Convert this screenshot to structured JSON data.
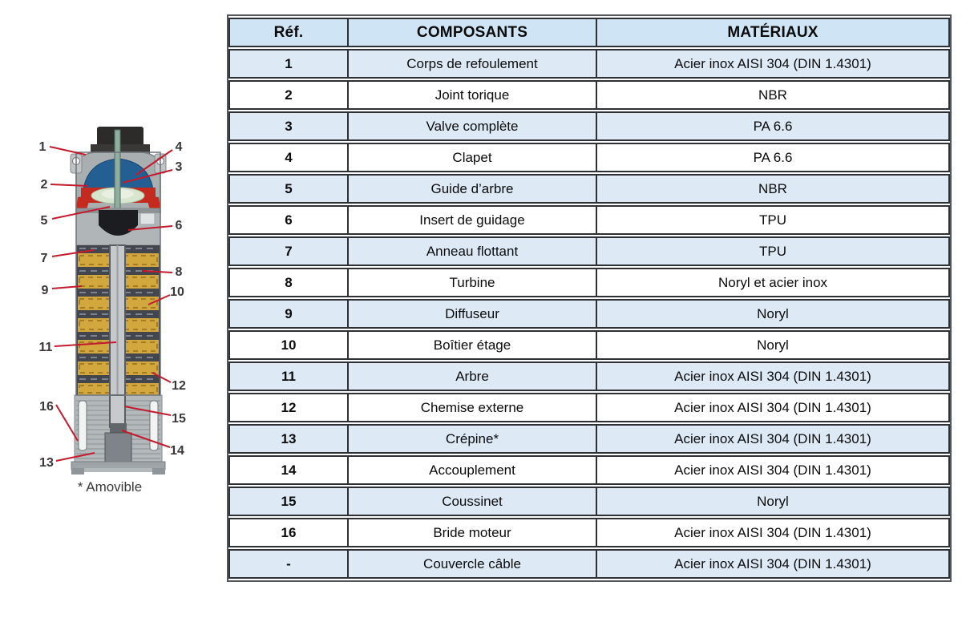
{
  "colors": {
    "header_blue": "#cfe4f4",
    "row_alt": "#ddeaf6",
    "border_dark": "#2e3033",
    "leader_red": "#c41a2e"
  },
  "diagram": {
    "footnote": "* Amovible",
    "labels": [
      "1",
      "2",
      "3",
      "4",
      "5",
      "6",
      "7",
      "8",
      "9",
      "10",
      "11",
      "12",
      "13",
      "14",
      "15",
      "16"
    ]
  },
  "table": {
    "headers": [
      "Réf.",
      "COMPOSANTS",
      "MATÉRIAUX"
    ],
    "rows": [
      [
        "1",
        "Corps de refoulement",
        "Acier inox AISI 304 (DIN 1.4301)"
      ],
      [
        "2",
        "Joint torique",
        "NBR"
      ],
      [
        "3",
        "Valve complète",
        "PA 6.6"
      ],
      [
        "4",
        "Clapet",
        "PA 6.6"
      ],
      [
        "5",
        "Guide d’arbre",
        "NBR"
      ],
      [
        "6",
        "Insert de guidage",
        "TPU"
      ],
      [
        "7",
        "Anneau flottant",
        "TPU"
      ],
      [
        "8",
        "Turbine",
        "Noryl et acier inox"
      ],
      [
        "9",
        "Diffuseur",
        "Noryl"
      ],
      [
        "10",
        "Boîtier étage",
        "Noryl"
      ],
      [
        "11",
        "Arbre",
        "Acier inox AISI 304 (DIN 1.4301)"
      ],
      [
        "12",
        "Chemise externe",
        "Acier inox AISI 304 (DIN 1.4301)"
      ],
      [
        "13",
        "Crépine*",
        "Acier inox AISI 304 (DIN 1.4301)"
      ],
      [
        "14",
        "Accouplement",
        "Acier inox AISI 304 (DIN 1.4301)"
      ],
      [
        "15",
        "Coussinet",
        "Noryl"
      ],
      [
        "16",
        "Bride moteur",
        "Acier inox AISI 304 (DIN 1.4301)"
      ],
      [
        "-",
        "Couvercle câble",
        "Acier inox AISI 304 (DIN 1.4301)"
      ]
    ]
  }
}
